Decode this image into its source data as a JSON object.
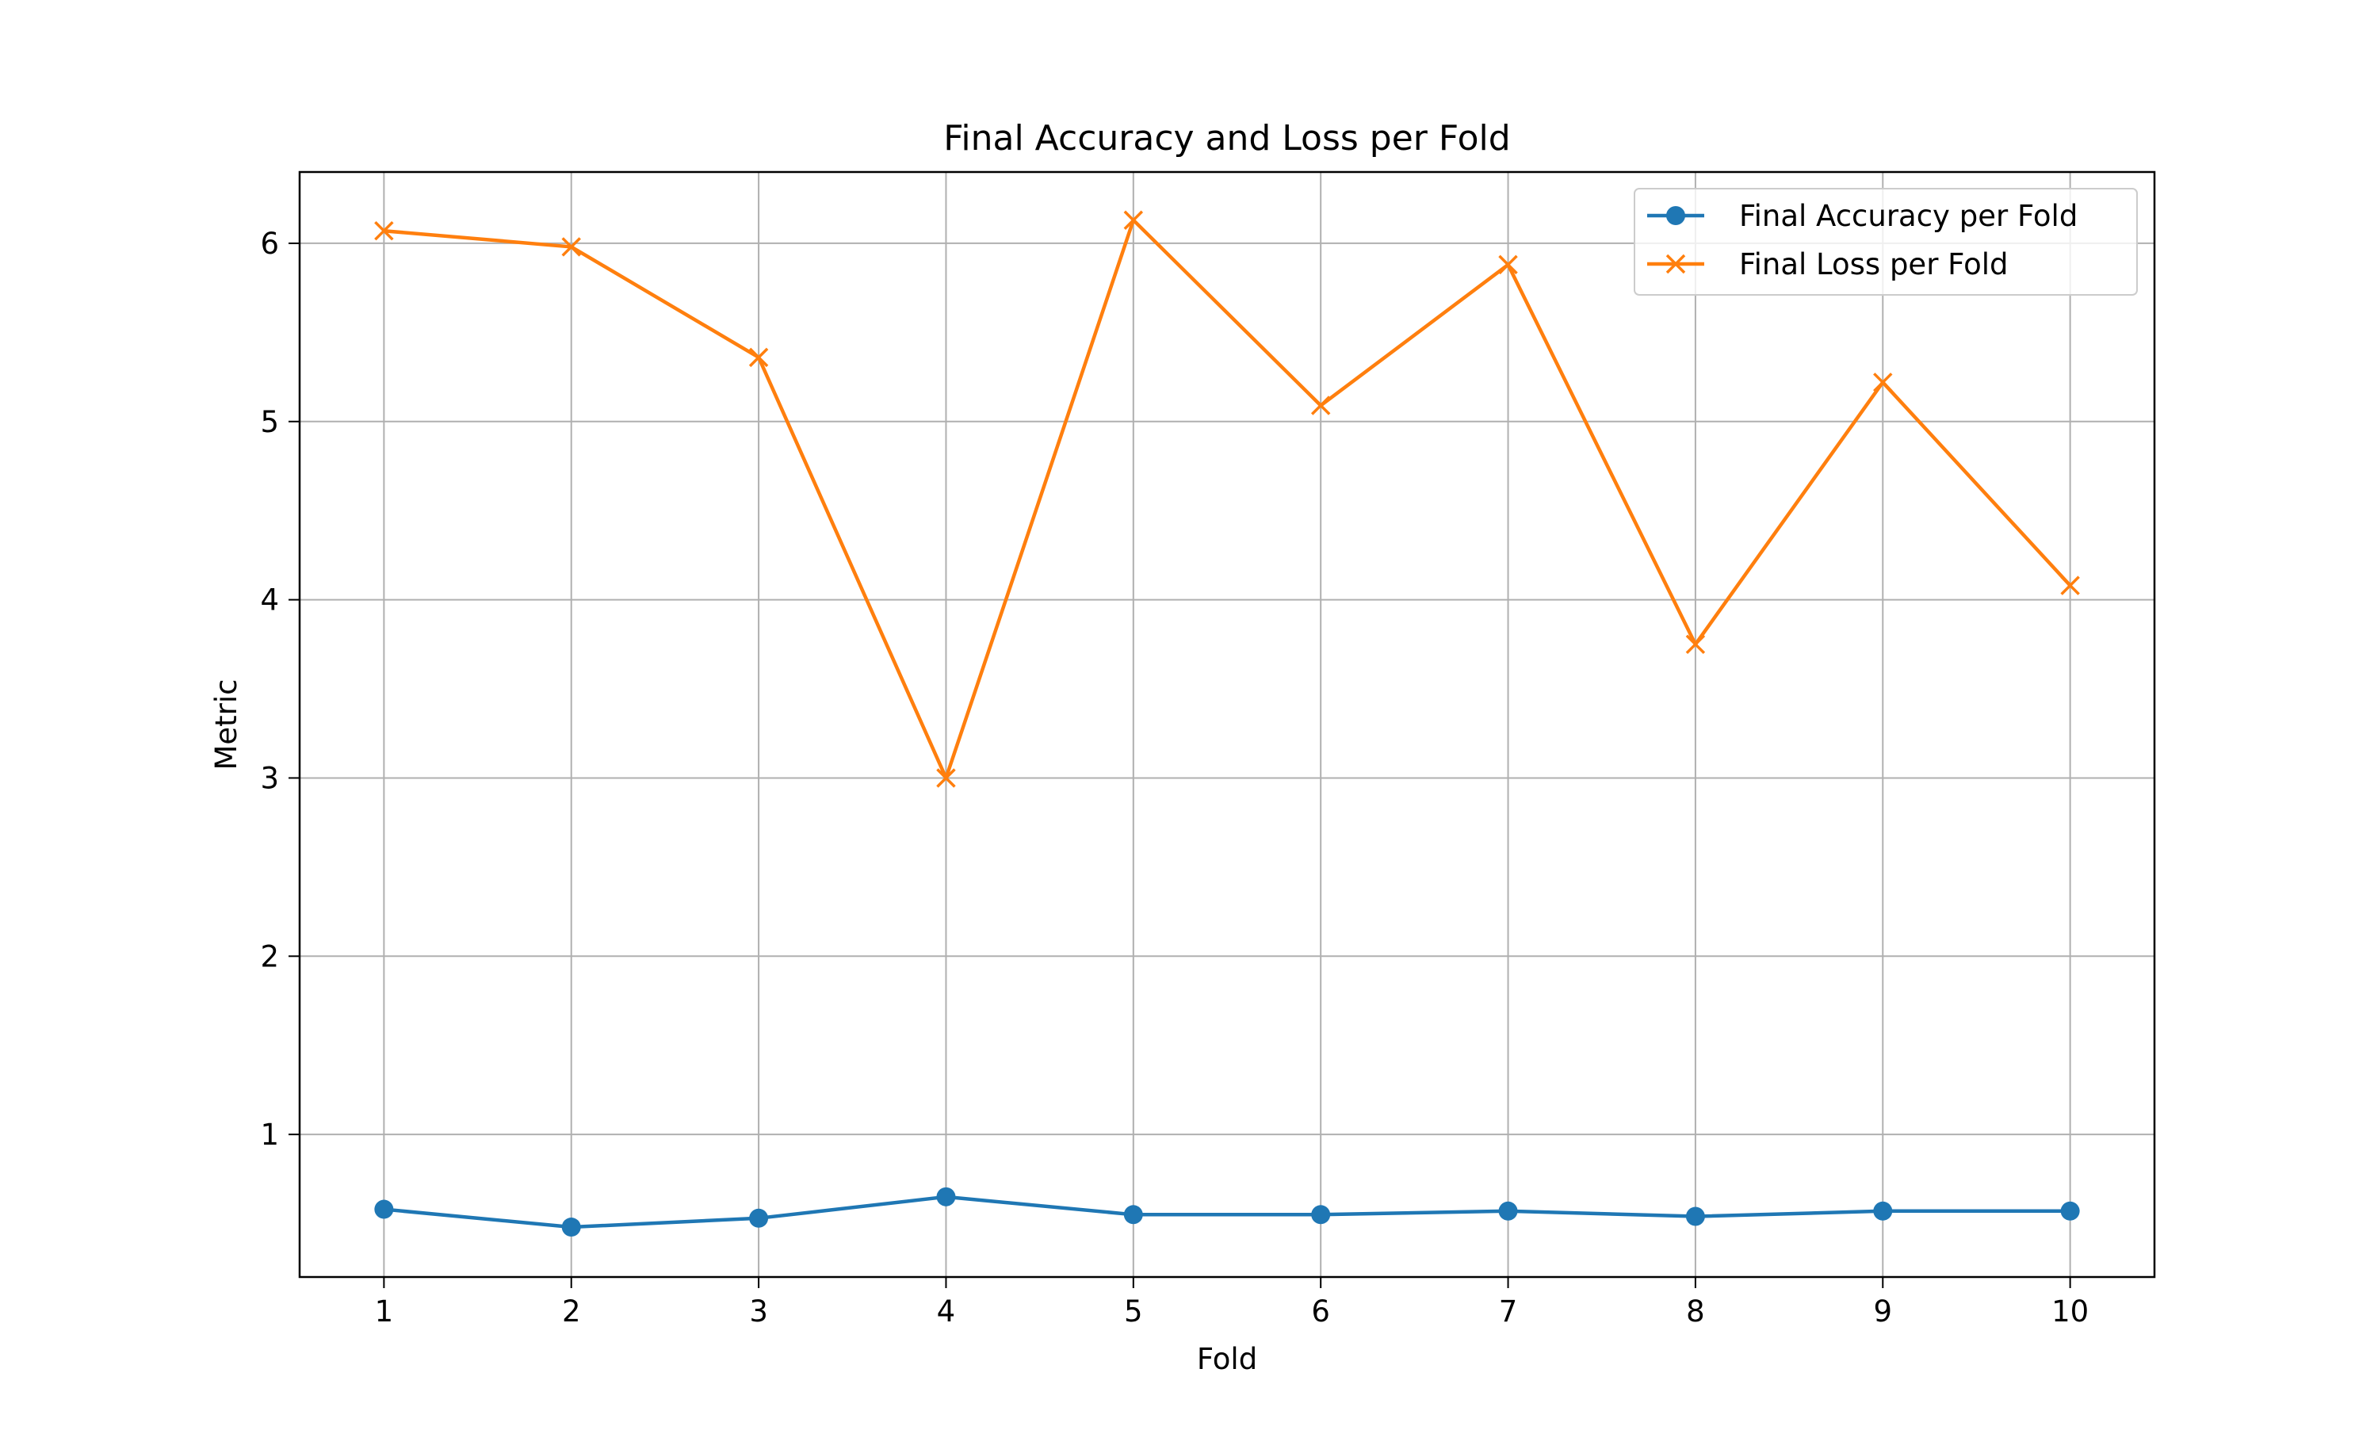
{
  "chart_data": {
    "type": "line",
    "title": "Final Accuracy and Loss per Fold",
    "xlabel": "Fold",
    "ylabel": "Metric",
    "x": [
      1,
      2,
      3,
      4,
      5,
      6,
      7,
      8,
      9,
      10
    ],
    "x_ticks": [
      "1",
      "2",
      "3",
      "4",
      "5",
      "6",
      "7",
      "8",
      "9",
      "10"
    ],
    "y_ticks": [
      "1",
      "2",
      "3",
      "4",
      "5",
      "6"
    ],
    "xlim": [
      0.55,
      10.45
    ],
    "ylim": [
      0.2,
      6.4
    ],
    "grid": true,
    "legend_position": "top-right",
    "series": [
      {
        "name": "Final Accuracy per Fold",
        "marker": "circle",
        "color": "#1f77b4",
        "values": [
          0.58,
          0.48,
          0.53,
          0.65,
          0.55,
          0.55,
          0.57,
          0.54,
          0.57,
          0.57
        ]
      },
      {
        "name": "Final Loss per Fold",
        "marker": "x",
        "color": "#ff7f0e",
        "values": [
          6.07,
          5.98,
          5.36,
          3.0,
          6.13,
          5.09,
          5.88,
          3.75,
          5.22,
          4.08
        ]
      }
    ]
  }
}
